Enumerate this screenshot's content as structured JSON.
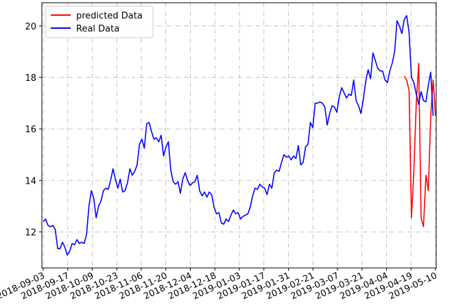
{
  "chart_data": {
    "type": "line",
    "title": "",
    "xlabel": "",
    "ylabel": "",
    "x_tick_labels": [
      "2018-09-03",
      "2018-09-17",
      "2018-10-09",
      "2018-10-23",
      "2018-11-06",
      "2018-11-20",
      "2018-12-04",
      "2018-12-18",
      "2019-01-03",
      "2019-01-17",
      "2019-01-31",
      "2019-02-21",
      "2019-03-07",
      "2019-03-21",
      "2019-04-04",
      "2019-04-19",
      "2019-05-10"
    ],
    "y_ticks": [
      12,
      14,
      16,
      18,
      20
    ],
    "y_tick_labels": [
      "12",
      "14",
      "16",
      "18",
      "20"
    ],
    "ylim": [
      10.6,
      20.9
    ],
    "grid": true,
    "legend_position": "top-left",
    "series": [
      {
        "name": "predicted Data",
        "color": "#ff0000",
        "start_index": 150,
        "values": [
          18.05,
          17.9,
          17.5,
          12.55,
          14.4,
          17.0,
          18.55,
          12.55,
          12.2,
          14.2,
          13.6,
          16.5,
          17.9,
          16.5
        ]
      },
      {
        "name": "Real Data",
        "color": "#0000ff",
        "start_index": 0,
        "values": [
          12.4,
          12.5,
          12.25,
          12.2,
          12.25,
          12.1,
          11.35,
          11.35,
          11.6,
          11.4,
          11.1,
          11.25,
          11.55,
          11.5,
          11.7,
          11.55,
          11.6,
          11.55,
          11.9,
          13.0,
          13.6,
          13.3,
          12.55,
          13.0,
          13.2,
          13.6,
          13.7,
          13.65,
          14.0,
          14.45,
          14.05,
          13.7,
          14.05,
          13.55,
          13.6,
          13.9,
          14.45,
          14.2,
          14.35,
          14.6,
          15.4,
          15.6,
          15.25,
          16.2,
          16.25,
          15.9,
          15.6,
          15.65,
          15.5,
          15.75,
          14.95,
          15.3,
          15.5,
          14.4,
          13.95,
          13.85,
          13.95,
          13.5,
          14.05,
          14.3,
          14.0,
          13.8,
          13.9,
          13.95,
          14.2,
          13.6,
          13.4,
          13.55,
          13.35,
          13.55,
          13.45,
          12.95,
          12.7,
          12.75,
          12.35,
          12.3,
          12.5,
          12.4,
          12.65,
          12.85,
          12.7,
          12.75,
          12.5,
          12.6,
          12.65,
          12.7,
          12.95,
          13.4,
          13.7,
          13.65,
          13.85,
          13.75,
          13.7,
          13.45,
          13.85,
          13.7,
          14.3,
          14.4,
          14.35,
          14.7,
          15.0,
          14.9,
          14.95,
          14.8,
          14.95,
          14.85,
          15.35,
          14.6,
          14.7,
          15.3,
          15.4,
          16.25,
          16.05,
          17.0,
          17.0,
          17.05,
          17.0,
          16.85,
          16.15,
          16.6,
          16.9,
          16.85,
          16.65,
          17.25,
          17.6,
          17.4,
          17.2,
          17.35,
          17.3,
          17.9,
          17.1,
          16.9,
          16.6,
          17.15,
          17.85,
          18.3,
          17.95,
          18.95,
          18.65,
          18.35,
          18.25,
          18.25,
          17.9,
          17.8,
          18.25,
          18.55,
          19.0,
          20.2,
          20.0,
          19.7,
          20.25,
          20.4,
          19.75,
          18.0,
          17.8,
          17.35,
          16.95,
          17.45,
          17.1,
          17.05,
          17.7,
          18.2,
          16.5
        ]
      }
    ]
  }
}
